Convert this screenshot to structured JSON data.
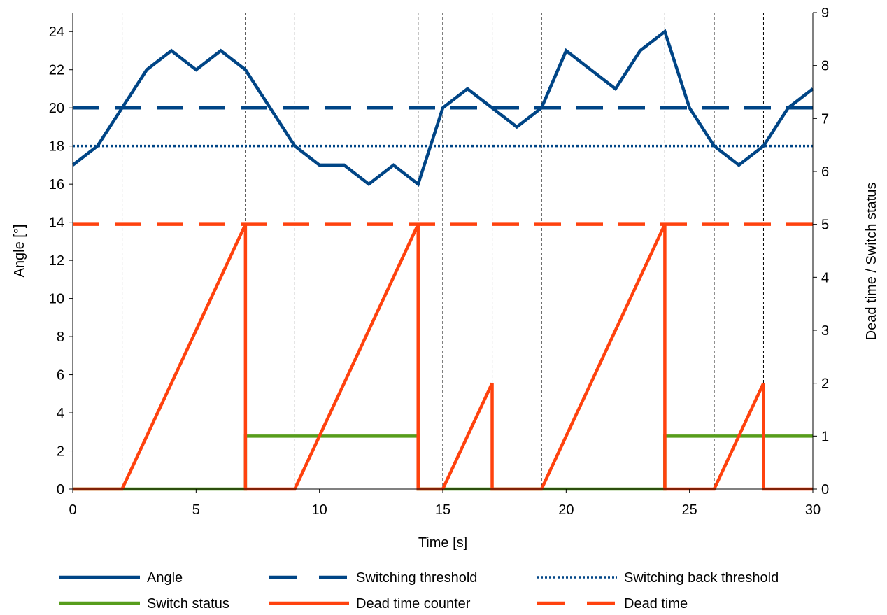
{
  "chart_data": {
    "type": "line",
    "xlabel": "Time [s]",
    "ylabel": "Angle [°]",
    "y2label": "Dead time / Switch status",
    "xlim": [
      0,
      30
    ],
    "ylim": [
      0,
      25
    ],
    "y2lim": [
      0,
      9
    ],
    "x_ticks": [
      0,
      5,
      10,
      15,
      20,
      25,
      30
    ],
    "y_ticks": [
      0,
      2,
      4,
      6,
      8,
      10,
      12,
      14,
      16,
      18,
      20,
      22,
      24
    ],
    "y2_ticks": [
      0,
      1,
      2,
      3,
      4,
      5,
      6,
      7,
      8,
      9
    ],
    "grid": false,
    "event_lines_x": [
      2,
      7,
      9,
      14,
      15,
      17,
      19,
      24,
      26,
      28
    ],
    "legend_position": "bottom",
    "series": [
      {
        "name": "Angle",
        "axis": "left",
        "style": "solid",
        "color": "#004586",
        "points": [
          [
            0,
            17
          ],
          [
            1,
            18
          ],
          [
            2,
            20
          ],
          [
            3,
            22
          ],
          [
            4,
            23
          ],
          [
            5,
            22
          ],
          [
            6,
            23
          ],
          [
            7,
            22
          ],
          [
            8,
            20
          ],
          [
            9,
            18
          ],
          [
            10,
            17
          ],
          [
            11,
            17
          ],
          [
            12,
            16
          ],
          [
            13,
            17
          ],
          [
            14,
            16
          ],
          [
            15,
            20
          ],
          [
            16,
            21
          ],
          [
            17,
            20
          ],
          [
            18,
            19
          ],
          [
            19,
            20
          ],
          [
            20,
            23
          ],
          [
            21,
            22
          ],
          [
            22,
            21
          ],
          [
            23,
            23
          ],
          [
            24,
            24
          ],
          [
            25,
            20
          ],
          [
            26,
            18
          ],
          [
            27,
            17
          ],
          [
            28,
            18
          ],
          [
            29,
            20
          ],
          [
            30,
            21
          ]
        ]
      },
      {
        "name": "Switching threshold",
        "axis": "left",
        "style": "dashed",
        "color": "#004586",
        "points": [
          [
            0,
            20
          ],
          [
            30,
            20
          ]
        ]
      },
      {
        "name": "Switching back threshold",
        "axis": "left",
        "style": "dotted",
        "color": "#004586",
        "points": [
          [
            0,
            18
          ],
          [
            30,
            18
          ]
        ]
      },
      {
        "name": "Switch status",
        "axis": "right",
        "style": "solid",
        "color": "#579d1c",
        "points": [
          [
            0,
            0
          ],
          [
            7,
            0
          ],
          [
            7,
            1
          ],
          [
            14,
            1
          ],
          [
            14,
            0
          ],
          [
            24,
            0
          ],
          [
            24,
            1
          ],
          [
            30,
            1
          ]
        ]
      },
      {
        "name": "Dead time counter",
        "axis": "right",
        "style": "solid",
        "color": "#ff420e",
        "points": [
          [
            0,
            0
          ],
          [
            2,
            0
          ],
          [
            7,
            5
          ],
          [
            7,
            0
          ],
          [
            9,
            0
          ],
          [
            14,
            5
          ],
          [
            14,
            0
          ],
          [
            15,
            0
          ],
          [
            17,
            2
          ],
          [
            17,
            0
          ],
          [
            19,
            0
          ],
          [
            24,
            5
          ],
          [
            24,
            0
          ],
          [
            26,
            0
          ],
          [
            28,
            2
          ],
          [
            28,
            0
          ],
          [
            30,
            0
          ]
        ]
      },
      {
        "name": "Dead time",
        "axis": "right",
        "style": "dashed",
        "color": "#ff420e",
        "points": [
          [
            0,
            5
          ],
          [
            30,
            5
          ]
        ]
      }
    ]
  }
}
